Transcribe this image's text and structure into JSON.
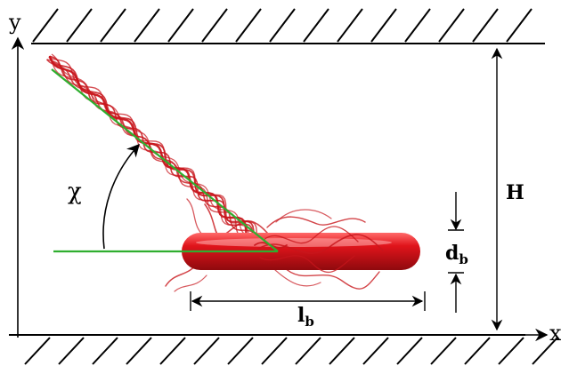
{
  "labels": {
    "y_axis": "y",
    "x_axis": "x",
    "height": "H",
    "angle": "χ",
    "body_diameter_main": "d",
    "body_diameter_sub": "b",
    "body_length_main": "l",
    "body_length_sub": "b"
  },
  "colors": {
    "body": "#e0141b",
    "body_highlight": "#ff6a6a",
    "body_shadow": "#8e0a0e",
    "flagella": "#c8161c",
    "guide_line": "#2fae2f",
    "wall": "#000000"
  },
  "icons": {
    "walls": "hatched-wall-icon",
    "angle_arrow": "curved-arrow-icon"
  }
}
